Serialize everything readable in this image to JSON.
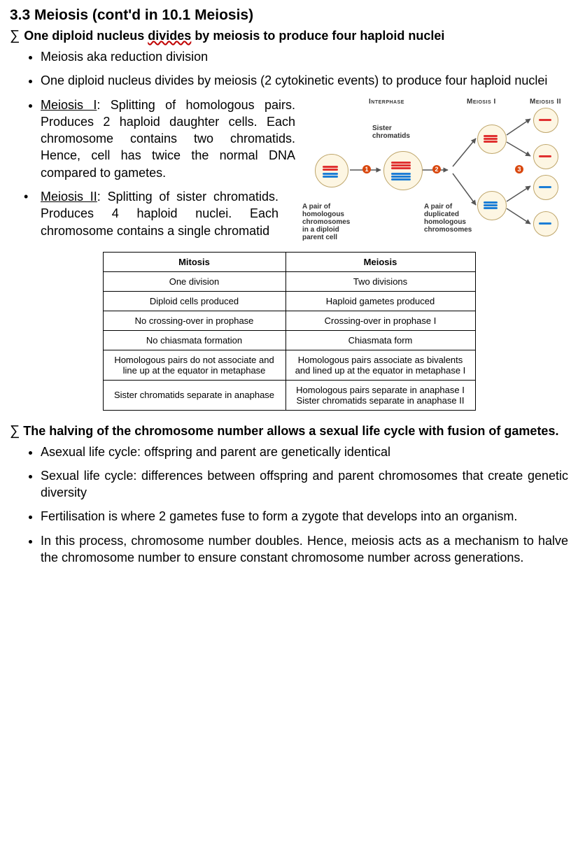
{
  "section": {
    "title": "3.3 Meiosis (cont'd in 10.1 Meiosis)"
  },
  "heading1": {
    "sigma": "∑",
    "pre": "One diploid nucleus ",
    "wavy": "divides",
    "post": " by meiosis to produce four haploid nuclei"
  },
  "bullets1": {
    "b1": "Meiosis aka reduction division",
    "b2": "One diploid nucleus divides by meiosis (2 cytokinetic events) to produce four haploid nuclei",
    "b3_label": "Meiosis I",
    "b3_text": ": Splitting of homologous pairs. Produces 2 haploid daughter cells. Each chromosome contains two chromatids. Hence, cell has twice the normal DNA compared to gametes.",
    "b4_label": "Meiosis II",
    "b4_text": ": Splitting of sister chromatids. Produces 4 haploid nuclei. Each chromosome contains a single chromatid"
  },
  "diagram": {
    "phase_interphase": "Interphase",
    "phase_meiosis1": "Meiosis I",
    "phase_meiosis2": "Meiosis II",
    "label_sister": "Sister chromatids",
    "label_parent": "A pair of homologous chromosomes in a diploid parent cell",
    "label_duplicated": "A pair of duplicated homologous chromosomes",
    "badge1": "1",
    "badge2": "2",
    "badge3": "3",
    "colors": {
      "cell_border": "#bfa66b",
      "cell_fill": "#fdf6e3",
      "red": "#e03131",
      "blue": "#1c7ed6",
      "arrow": "#555",
      "badge": "#d9480f"
    }
  },
  "table": {
    "header_mitosis": "Mitosis",
    "header_meiosis": "Meiosis",
    "rows": [
      [
        "One division",
        "Two divisions"
      ],
      [
        "Diploid cells produced",
        "Haploid gametes produced"
      ],
      [
        "No crossing-over in prophase",
        "Crossing-over in prophase I"
      ],
      [
        "No chiasmata formation",
        "Chiasmata form"
      ],
      [
        "Homologous pairs do not associate and line up at the equator in metaphase",
        "Homologous pairs associate as bivalents and lined up at the equator in metaphase I"
      ],
      [
        "Sister chromatids separate in anaphase",
        "Homologous pairs separate in anaphase I Sister chromatids separate in anaphase II"
      ]
    ]
  },
  "heading2": {
    "sigma": "∑",
    "text": "The halving of the chromosome number allows a sexual life cycle with fusion of gametes."
  },
  "bullets2": {
    "b1": "Asexual life cycle: offspring and parent are genetically identical",
    "b2": "Sexual life cycle: differences between offspring and parent chromosomes that create genetic diversity",
    "b3": "Fertilisation is where 2 gametes fuse to form a zygote that develops into an organism.",
    "b4": "In this process, chromosome number doubles. Hence, meiosis acts as a mechanism to halve the chromosome number to ensure constant chromosome number across generations."
  }
}
